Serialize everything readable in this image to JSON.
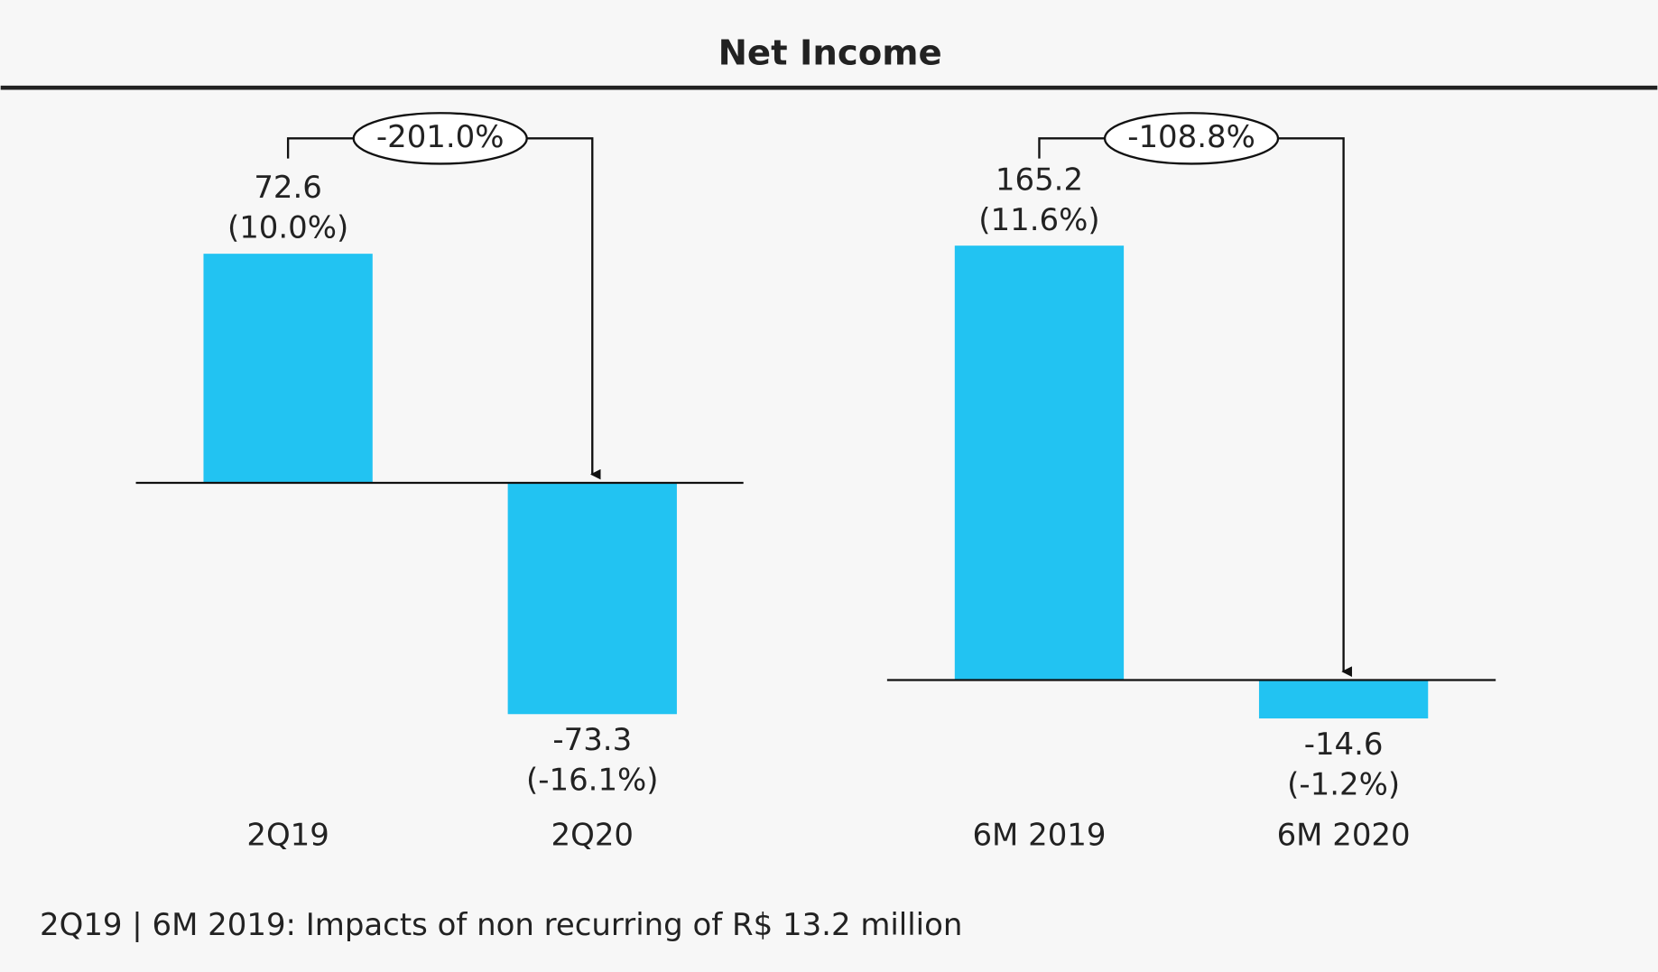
{
  "title": "Net Income",
  "footnote": "2Q19 | 6M 2019: Impacts of non recurring of R$ 13.2 million",
  "chart_data": [
    {
      "type": "bar",
      "categories": [
        "2Q19",
        "2Q20"
      ],
      "values": [
        72.6,
        -73.3
      ],
      "margin_labels": [
        "(10.0%)",
        "(-16.1%)"
      ],
      "change_label": "-201.0%",
      "color": "#22c3f2",
      "ylim": [
        -75,
        75
      ]
    },
    {
      "type": "bar",
      "categories": [
        "6M 2019",
        "6M 2020"
      ],
      "values": [
        165.2,
        -14.6
      ],
      "margin_labels": [
        "(11.6%)",
        "(-1.2%)"
      ],
      "change_label": "-108.8%",
      "color": "#22c3f2",
      "ylim": [
        -15,
        165
      ]
    }
  ]
}
